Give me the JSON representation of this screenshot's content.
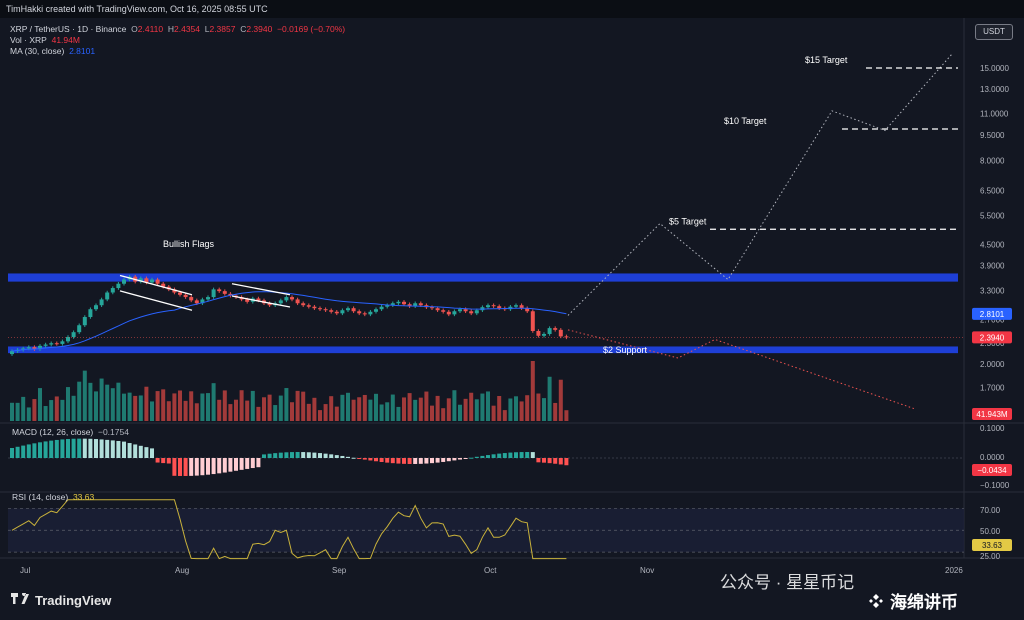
{
  "header": {
    "credit": "TimHakki created with TradingView.com, Oct 16, 2025 08:55 UTC"
  },
  "legend": {
    "symbol": "XRP / TetherUS · 1D · Binance",
    "o_label": "O",
    "o": "2.4110",
    "h_label": "H",
    "h": "2.4354",
    "l_label": "L",
    "l": "2.3857",
    "c_label": "C",
    "c": "2.3940",
    "change": "−0.0169 (−0.70%)",
    "vol_label": "Vol · XRP",
    "vol": "41.94M",
    "ma_label": "MA (30, close)",
    "ma": "2.8101",
    "macd_label": "MACD (12, 26, close)",
    "macd": "−0.1754",
    "rsi_label": "RSI (14, close)",
    "rsi": "33.63"
  },
  "currency": "USDT",
  "annotations": {
    "bullish_flags": "Bullish Flags",
    "t15": "$15 Target",
    "t10": "$10 Target",
    "t5": "$5 Target",
    "support": "$2 Support"
  },
  "price_axis": {
    "ticks": [
      "15.0000",
      "13.0000",
      "11.0000",
      "9.5000",
      "8.0000",
      "6.5000",
      "5.5000",
      "4.5000",
      "3.9000",
      "3.3000",
      "2.7000",
      "2.3000",
      "2.0000",
      "1.7000",
      "1.4500"
    ],
    "ma_badge": "2.8101",
    "price_badge": "2.3940",
    "vol_badge": "41.943M"
  },
  "macd_axis": {
    "ticks": [
      "0.1000",
      "0.0000",
      "−0.1000"
    ],
    "badge": "−0.0434"
  },
  "rsi_axis": {
    "ticks": [
      "70.00",
      "50.00",
      "25.00"
    ],
    "badge": "33.63"
  },
  "time_axis": [
    "Jul",
    "Aug",
    "Sep",
    "Oct",
    "Nov",
    "2026"
  ],
  "watermark": {
    "line1": "公众号 · 星星币记",
    "line2": "海绵讲币"
  },
  "brand": "TradingView",
  "colors": {
    "up": "#26a69a",
    "down": "#ef5350",
    "zone": "#1e3fd6",
    "ma": "#2962ff",
    "rsi": "#c9b23b"
  },
  "chart_data": {
    "type": "candlestick",
    "title": "XRP / TetherUS · 1D · Binance",
    "y_scale": "log",
    "ylim": [
      1.4,
      17
    ],
    "annotated_levels": {
      "$15 Target": 15.0,
      "$10 Target": 10.0,
      "$5 Target": 5.0,
      "$2 Support": 2.1
    },
    "resistance_zone": [
      3.5,
      3.7
    ],
    "support_zone": [
      2.15,
      2.25
    ],
    "closes": [
      2.18,
      2.2,
      2.22,
      2.24,
      2.21,
      2.26,
      2.28,
      2.3,
      2.29,
      2.33,
      2.4,
      2.48,
      2.6,
      2.75,
      2.9,
      2.98,
      3.1,
      3.25,
      3.35,
      3.45,
      3.55,
      3.62,
      3.5,
      3.58,
      3.48,
      3.55,
      3.45,
      3.38,
      3.32,
      3.25,
      3.2,
      3.15,
      3.08,
      3.02,
      3.1,
      3.15,
      3.32,
      3.28,
      3.22,
      3.18,
      3.15,
      3.1,
      3.05,
      3.12,
      3.08,
      3.02,
      2.98,
      3.02,
      3.08,
      3.15,
      3.1,
      3.02,
      2.98,
      2.95,
      2.92,
      2.9,
      2.88,
      2.85,
      2.82,
      2.88,
      2.92,
      2.86,
      2.82,
      2.8,
      2.85,
      2.9,
      2.95,
      2.98,
      3.02,
      3.05,
      3.0,
      2.96,
      3.02,
      2.98,
      2.94,
      2.92,
      2.88,
      2.85,
      2.8,
      2.86,
      2.9,
      2.86,
      2.82,
      2.88,
      2.94,
      2.98,
      2.96,
      2.92,
      2.9,
      2.95,
      2.98,
      2.92,
      2.86,
      2.5,
      2.42,
      2.45,
      2.55,
      2.52,
      2.41,
      2.394
    ]
  }
}
